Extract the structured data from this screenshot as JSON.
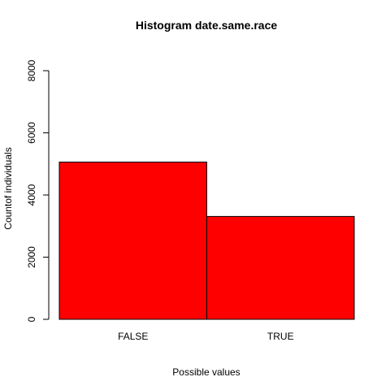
{
  "chart_data": {
    "type": "bar",
    "title": "Histogram date.same.race",
    "xlabel": "Possible values",
    "ylabel": "Countof individuals",
    "categories": [
      "FALSE",
      "TRUE"
    ],
    "values": [
      5060,
      3310
    ],
    "ylim": [
      0,
      8000
    ],
    "yticks": [
      "0",
      "2000",
      "4000",
      "6000",
      "8000"
    ],
    "grid": false,
    "bar_color": "#ff0000",
    "bar_edge_color": "#000000"
  }
}
